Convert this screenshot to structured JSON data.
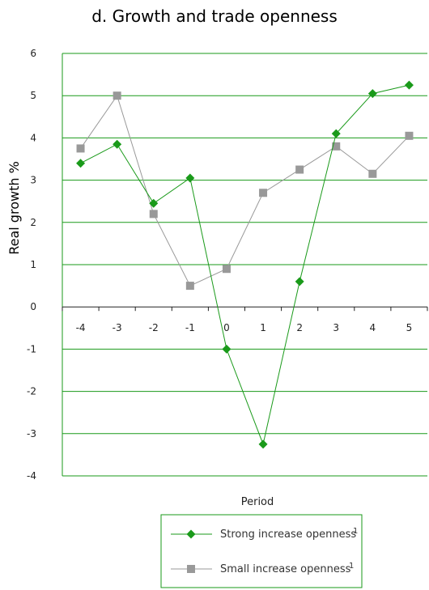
{
  "chart_data": {
    "type": "line",
    "title": "d. Growth and trade openness",
    "xlabel": "Period",
    "ylabel": "Real growth %",
    "x": [
      -4,
      -3,
      -2,
      -1,
      0,
      1,
      2,
      3,
      4,
      5
    ],
    "xtick_labels": [
      "-4",
      "-3",
      "-2",
      "-1",
      "0",
      "1",
      "2",
      "3",
      "4",
      "5"
    ],
    "ylim": [
      -4,
      6
    ],
    "yticks": [
      6,
      5,
      4,
      3,
      2,
      1,
      0,
      -1,
      -2,
      -3,
      -4
    ],
    "grid": true,
    "legend_position": "bottom-right",
    "series": [
      {
        "name": "Strong increase openness",
        "footnote": "1",
        "color": "#1a9a1a",
        "marker": "diamond",
        "values": [
          3.4,
          3.85,
          2.45,
          3.05,
          -1.0,
          -3.25,
          0.6,
          4.1,
          5.05,
          5.25
        ]
      },
      {
        "name": "Small increase openness",
        "footnote": "1",
        "color": "#999999",
        "marker": "square",
        "values": [
          3.75,
          5.0,
          2.2,
          0.5,
          0.9,
          2.7,
          3.25,
          3.8,
          3.15,
          4.05
        ]
      }
    ]
  }
}
